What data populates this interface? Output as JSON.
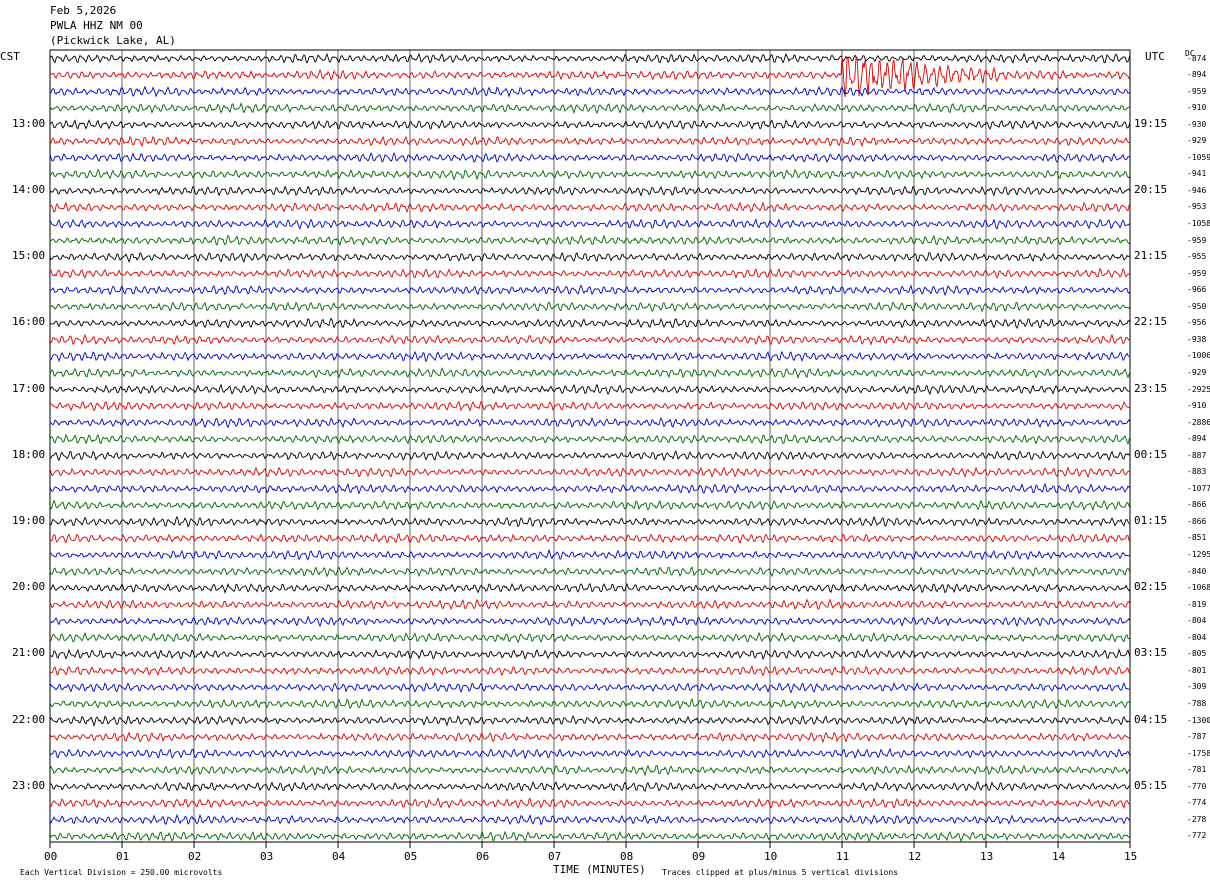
{
  "header": {
    "date": "Feb 5,2026",
    "station": "PWLA HHZ NM 00",
    "location": "(Pickwick Lake, AL)",
    "left_zone": "CST",
    "right_zone": "UTC",
    "dc_label": "DC"
  },
  "footer": {
    "scale_note": "Each Vertical Division =  250.00 microvolts",
    "xlabel": "TIME (MINUTES)",
    "clip_note": "Traces clipped at plus/minus 5 vertical divisions"
  },
  "colors": {
    "trace_cycle": [
      "#000000",
      "#dd0000",
      "#0000cc",
      "#006600"
    ],
    "grid": "#000000"
  },
  "chart_data": {
    "type": "line",
    "title": "",
    "xlabel": "TIME (MINUTES)",
    "ylabel": "",
    "xlim": [
      0,
      15
    ],
    "x_ticks": [
      "00",
      "01",
      "02",
      "03",
      "04",
      "05",
      "06",
      "07",
      "08",
      "09",
      "10",
      "11",
      "12",
      "13",
      "14",
      "15"
    ],
    "rows": 48,
    "hour_labels_left": [
      "13:00",
      "14:00",
      "15:00",
      "16:00",
      "17:00",
      "18:00",
      "19:00",
      "20:00",
      "21:00",
      "22:00",
      "23:00"
    ],
    "hour_labels_right": [
      "19:15",
      "20:15",
      "21:15",
      "22:15",
      "23:15",
      "00:15",
      "01:15",
      "02:15",
      "03:15",
      "04:15",
      "05:15"
    ],
    "dc_offsets": [
      "-874",
      "-894",
      "-959",
      "-910",
      "-930",
      "-929",
      "-1059",
      "-941",
      "-946",
      "-953",
      "-1058",
      "-959",
      "-955",
      "-959",
      "-966",
      "-950",
      "-956",
      "-938",
      "-1006",
      "-929",
      "-2925",
      "-910",
      "-2886",
      "-894",
      "-887",
      "-883",
      "-1077",
      "-866",
      "-866",
      "-851",
      "-1295",
      "-840",
      "-1068",
      "-819",
      "-804",
      "-804",
      "-805",
      "-801",
      "-309",
      "-788",
      "-1300",
      "-787",
      "-1758",
      "-781",
      "-770",
      "-774",
      "-278",
      "-772"
    ],
    "events": [
      {
        "row": 1,
        "minute": 11.0,
        "duration_min": 2.2,
        "note": "large event"
      }
    ]
  }
}
